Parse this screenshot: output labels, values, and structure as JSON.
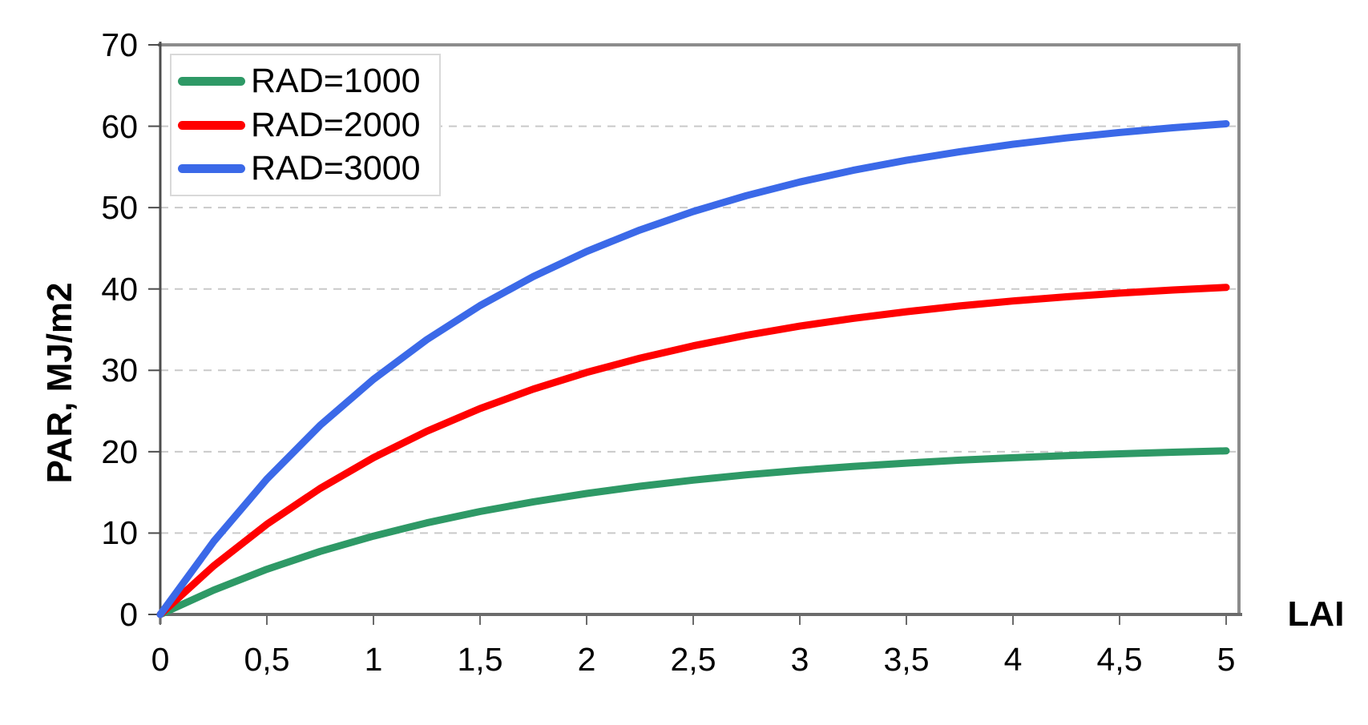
{
  "chart_data": {
    "type": "line",
    "title": "",
    "xlabel": "LAI",
    "ylabel": "PAR, MJ/m2",
    "xlim": [
      0,
      5
    ],
    "ylim": [
      0,
      70
    ],
    "grid": {
      "horizontal": true,
      "vertical": false,
      "style": "dashed",
      "color": "#c9c9c9"
    },
    "legend": {
      "position": "top-left-inside",
      "background": "#ffffff",
      "border_color": "#d9d9d9"
    },
    "x_ticks": [
      {
        "value": 0,
        "label": "0"
      },
      {
        "value": 0.5,
        "label": "0,5"
      },
      {
        "value": 1,
        "label": "1"
      },
      {
        "value": 1.5,
        "label": "1,5"
      },
      {
        "value": 2,
        "label": "2"
      },
      {
        "value": 2.5,
        "label": "2,5"
      },
      {
        "value": 3,
        "label": "3"
      },
      {
        "value": 3.5,
        "label": "3,5"
      },
      {
        "value": 4,
        "label": "4"
      },
      {
        "value": 4.5,
        "label": "4,5"
      },
      {
        "value": 5,
        "label": "5"
      }
    ],
    "y_ticks": [
      {
        "value": 0,
        "label": "0"
      },
      {
        "value": 10,
        "label": "10"
      },
      {
        "value": 20,
        "label": "20"
      },
      {
        "value": 30,
        "label": "30"
      },
      {
        "value": 40,
        "label": "40"
      },
      {
        "value": 50,
        "label": "50"
      },
      {
        "value": 60,
        "label": "60"
      },
      {
        "value": 70,
        "label": "70"
      }
    ],
    "x": [
      0,
      0.25,
      0.5,
      0.75,
      1,
      1.25,
      1.5,
      1.75,
      2,
      2.25,
      2.5,
      2.75,
      3,
      3.25,
      3.5,
      3.75,
      4,
      4.25,
      4.5,
      4.75,
      5
    ],
    "series": [
      {
        "name": "RAD=1000",
        "color": "#2E9966",
        "values": [
          0,
          2.98,
          5.55,
          7.75,
          9.63,
          11.25,
          12.65,
          13.84,
          14.87,
          15.75,
          16.51,
          17.16,
          17.71,
          18.19,
          18.6,
          18.96,
          19.26,
          19.52,
          19.74,
          19.94,
          20.1
        ]
      },
      {
        "name": "RAD=2000",
        "color": "#FF0000",
        "values": [
          0,
          5.97,
          11.09,
          15.49,
          19.27,
          22.51,
          25.3,
          27.69,
          29.74,
          31.5,
          33.01,
          34.31,
          35.43,
          36.39,
          37.21,
          37.91,
          38.52,
          39.04,
          39.49,
          39.87,
          40.2
        ]
      },
      {
        "name": "RAD=3000",
        "color": "#3B69E8",
        "values": [
          0,
          8.95,
          16.64,
          23.24,
          28.9,
          33.77,
          37.95,
          41.53,
          44.61,
          47.25,
          49.52,
          51.47,
          53.14,
          54.58,
          55.81,
          56.87,
          57.78,
          58.56,
          59.23,
          59.81,
          60.3
        ]
      }
    ],
    "style_colors": {
      "axis_line": "#4d4d4d",
      "plot_border": "#8c8c8c",
      "gridline": "#c9c9c9",
      "text": "#000000"
    }
  }
}
